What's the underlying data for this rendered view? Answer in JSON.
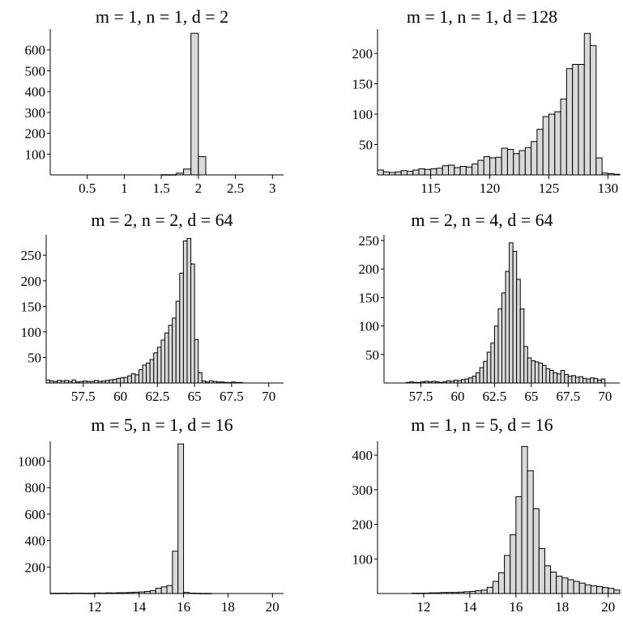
{
  "chart_data": [
    {
      "type": "bar",
      "title": "m = 1, n = 1, d = 2",
      "xlabel": "",
      "ylabel": "",
      "xlim": [
        0,
        3.15
      ],
      "ylim": [
        0,
        700
      ],
      "xticks": [
        0.5,
        1,
        1.5,
        2,
        2.5,
        3
      ],
      "xtick_labels": [
        "0.5",
        "1",
        "1.5",
        "2",
        "2.5",
        "3"
      ],
      "yticks": [
        100,
        200,
        300,
        400,
        500,
        600
      ],
      "ytick_labels": [
        "100",
        "200",
        "300",
        "400",
        "500",
        "600"
      ],
      "grid": false,
      "bin_start": 0,
      "bin_width": 0.1,
      "values": [
        0,
        0,
        0,
        0,
        0,
        0,
        0,
        0,
        0,
        0,
        0,
        0,
        0,
        0,
        0,
        1,
        1,
        8,
        28,
        680,
        88,
        0,
        0,
        0,
        0,
        0,
        0,
        0,
        0,
        0,
        0
      ]
    },
    {
      "type": "bar",
      "title": "m = 1, n = 1, d = 128",
      "xlabel": "",
      "ylabel": "",
      "xlim": [
        110.5,
        131
      ],
      "ylim": [
        0,
        240
      ],
      "xticks": [
        115,
        120,
        125,
        130
      ],
      "xtick_labels": [
        "115",
        "120",
        "125",
        "130"
      ],
      "yticks": [
        50,
        100,
        150,
        200
      ],
      "ytick_labels": [
        "50",
        "100",
        "150",
        "200"
      ],
      "grid": false,
      "bin_start": 110.5,
      "bin_width": 0.5,
      "values": [
        8,
        5,
        4,
        5,
        7,
        6,
        8,
        10,
        9,
        10,
        11,
        15,
        16,
        12,
        14,
        13,
        18,
        24,
        30,
        28,
        29,
        44,
        42,
        35,
        40,
        45,
        55,
        75,
        96,
        100,
        104,
        125,
        175,
        182,
        182,
        233,
        213,
        28,
        3,
        2,
        1
      ]
    },
    {
      "type": "bar",
      "title": "m = 2, n = 2, d = 64",
      "xlabel": "",
      "ylabel": "",
      "xlim": [
        55,
        71
      ],
      "ylim": [
        0,
        290
      ],
      "xticks": [
        57.5,
        60,
        62.5,
        65,
        67.5,
        70
      ],
      "xtick_labels": [
        "57.5",
        "60",
        "62.5",
        "65",
        "67.5",
        "70"
      ],
      "yticks": [
        50,
        100,
        150,
        200,
        250
      ],
      "ytick_labels": [
        "50",
        "100",
        "150",
        "200",
        "250"
      ],
      "grid": false,
      "bin_start": 55,
      "bin_width": 0.25,
      "values": [
        6,
        4,
        3,
        5,
        4,
        5,
        3,
        6,
        2,
        3,
        4,
        3,
        3,
        5,
        3,
        4,
        5,
        6,
        7,
        9,
        10,
        11,
        14,
        18,
        16,
        26,
        35,
        39,
        46,
        59,
        70,
        84,
        98,
        113,
        127,
        160,
        215,
        278,
        283,
        233,
        85,
        20,
        4,
        2,
        4,
        3,
        2,
        2,
        1,
        1,
        2,
        1,
        1,
        0,
        0,
        0,
        0,
        0,
        0,
        0,
        0,
        0,
        0,
        0
      ]
    },
    {
      "type": "bar",
      "title": "m = 2, n = 4, d = 64",
      "xlabel": "",
      "ylabel": "",
      "xlim": [
        55,
        71
      ],
      "ylim": [
        0,
        260
      ],
      "xticks": [
        57.5,
        60,
        62.5,
        65,
        67.5,
        70
      ],
      "xtick_labels": [
        "57.5",
        "60",
        "62.5",
        "65",
        "67.5",
        "70"
      ],
      "yticks": [
        50,
        100,
        150,
        200,
        250
      ],
      "ytick_labels": [
        "50",
        "100",
        "150",
        "200",
        "250"
      ],
      "grid": false,
      "bin_start": 55,
      "bin_width": 0.25,
      "values": [
        0,
        0,
        0,
        0,
        0,
        0,
        1,
        2,
        1,
        1,
        2,
        3,
        2,
        3,
        2,
        1,
        2,
        4,
        3,
        5,
        4,
        6,
        7,
        9,
        12,
        18,
        27,
        38,
        54,
        70,
        100,
        130,
        158,
        196,
        246,
        231,
        182,
        130,
        64,
        44,
        39,
        37,
        35,
        31,
        25,
        22,
        18,
        16,
        22,
        15,
        12,
        13,
        10,
        11,
        8,
        7,
        9,
        8,
        5,
        7,
        0,
        0,
        0,
        0
      ]
    },
    {
      "type": "bar",
      "title": "m = 5, n = 1, d = 16",
      "xlabel": "",
      "ylabel": "",
      "xlim": [
        10,
        20.5
      ],
      "ylim": [
        0,
        1150
      ],
      "xticks": [
        12,
        14,
        16,
        18,
        20
      ],
      "xtick_labels": [
        "12",
        "14",
        "16",
        "18",
        "20"
      ],
      "yticks": [
        200,
        400,
        600,
        800,
        1000
      ],
      "ytick_labels": [
        "200",
        "400",
        "600",
        "800",
        "1000"
      ],
      "grid": false,
      "bin_start": 10,
      "bin_width": 0.25,
      "values": [
        2,
        2,
        3,
        2,
        3,
        3,
        2,
        2,
        4,
        3,
        5,
        4,
        6,
        6,
        8,
        10,
        12,
        15,
        22,
        40,
        50,
        60,
        320,
        1130,
        8,
        3,
        2,
        1,
        1,
        0,
        0,
        0,
        0,
        0,
        0,
        0,
        0,
        0,
        0,
        0,
        0,
        0
      ]
    },
    {
      "type": "bar",
      "title": "m = 1, n = 5, d = 16",
      "xlabel": "",
      "ylabel": "",
      "xlim": [
        10,
        20.5
      ],
      "ylim": [
        0,
        440
      ],
      "xticks": [
        12,
        14,
        16,
        18,
        20
      ],
      "xtick_labels": [
        "12",
        "14",
        "16",
        "18",
        "20"
      ],
      "yticks": [
        100,
        200,
        300,
        400
      ],
      "ytick_labels": [
        "100",
        "200",
        "300",
        "400"
      ],
      "grid": false,
      "bin_start": 10,
      "bin_width": 0.25,
      "values": [
        0,
        0,
        0,
        0,
        0,
        0,
        1,
        1,
        1,
        2,
        2,
        3,
        3,
        3,
        4,
        5,
        6,
        8,
        10,
        18,
        35,
        60,
        110,
        170,
        280,
        425,
        355,
        245,
        130,
        80,
        62,
        50,
        45,
        40,
        35,
        30,
        25,
        22,
        20,
        17,
        15,
        10
      ]
    }
  ]
}
